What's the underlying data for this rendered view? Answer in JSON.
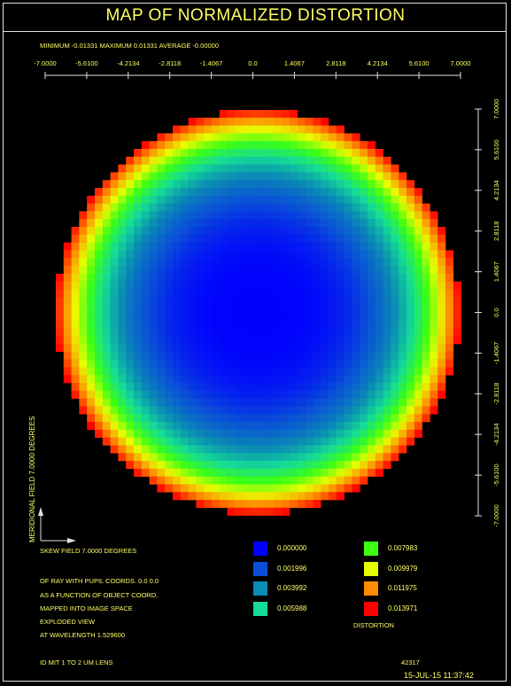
{
  "header": {
    "title": "MAP OF NORMALIZED DISTORTION",
    "stats": "MINIMUM  -0.01331 MAXIMUM  0.01331 AVERAGE  -0.00000"
  },
  "chart_data": {
    "type": "heatmap",
    "x_ticks": [
      "-7.0000",
      "-5.6100",
      "-4.2134",
      "-2.8118",
      "-1.4067",
      "0.0",
      "1.4067",
      "2.8118",
      "4.2134",
      "5.6100",
      "7.0000"
    ],
    "y_ticks": [
      "7.0000",
      "5.6100",
      "4.2134",
      "2.8118",
      "1.4067",
      "0.0",
      "-1.4067",
      "-2.8118",
      "-4.2134",
      "-5.6100",
      "-7.0000"
    ],
    "xlim": [
      -7.0,
      7.0
    ],
    "ylim": [
      -7.0,
      7.0
    ],
    "field_radius": 7.0,
    "max_distortion": 0.01331,
    "distortion_model": "radial",
    "grid": false,
    "legend": {
      "title": "DISTORTION",
      "entries": [
        {
          "value": "0.000000",
          "color": "#0000ff"
        },
        {
          "value": "0.001996",
          "color": "#0a4fd8"
        },
        {
          "value": "0.003992",
          "color": "#0a8cb4"
        },
        {
          "value": "0.005988",
          "color": "#14dc96"
        },
        {
          "value": "0.007983",
          "color": "#3cff14"
        },
        {
          "value": "0.009979",
          "color": "#e6ff00"
        },
        {
          "value": "0.011975",
          "color": "#ff8c00"
        },
        {
          "value": "0.013971",
          "color": "#ff0000"
        }
      ]
    }
  },
  "info": {
    "meridional": "MERIDIONAL FIELD  7.0000 DEGREES",
    "skew": "SKEW FIELD  7.0000 DEGREES",
    "line1": "OF RAY WITH PUPIL COORDS.  0.0  0.0",
    "line2": "AS A FUNCTION OF OBJECT COORD.",
    "line3": "MAPPED INTO IMAGE SPACE",
    "line4": "EXPLODED VIEW",
    "line5": "AT WAVELENGTH  1.529600",
    "lens": "ID MIT 1 TO 2 UM LENS",
    "id": "42317",
    "date": "15-JUL-15  11:37:42"
  }
}
